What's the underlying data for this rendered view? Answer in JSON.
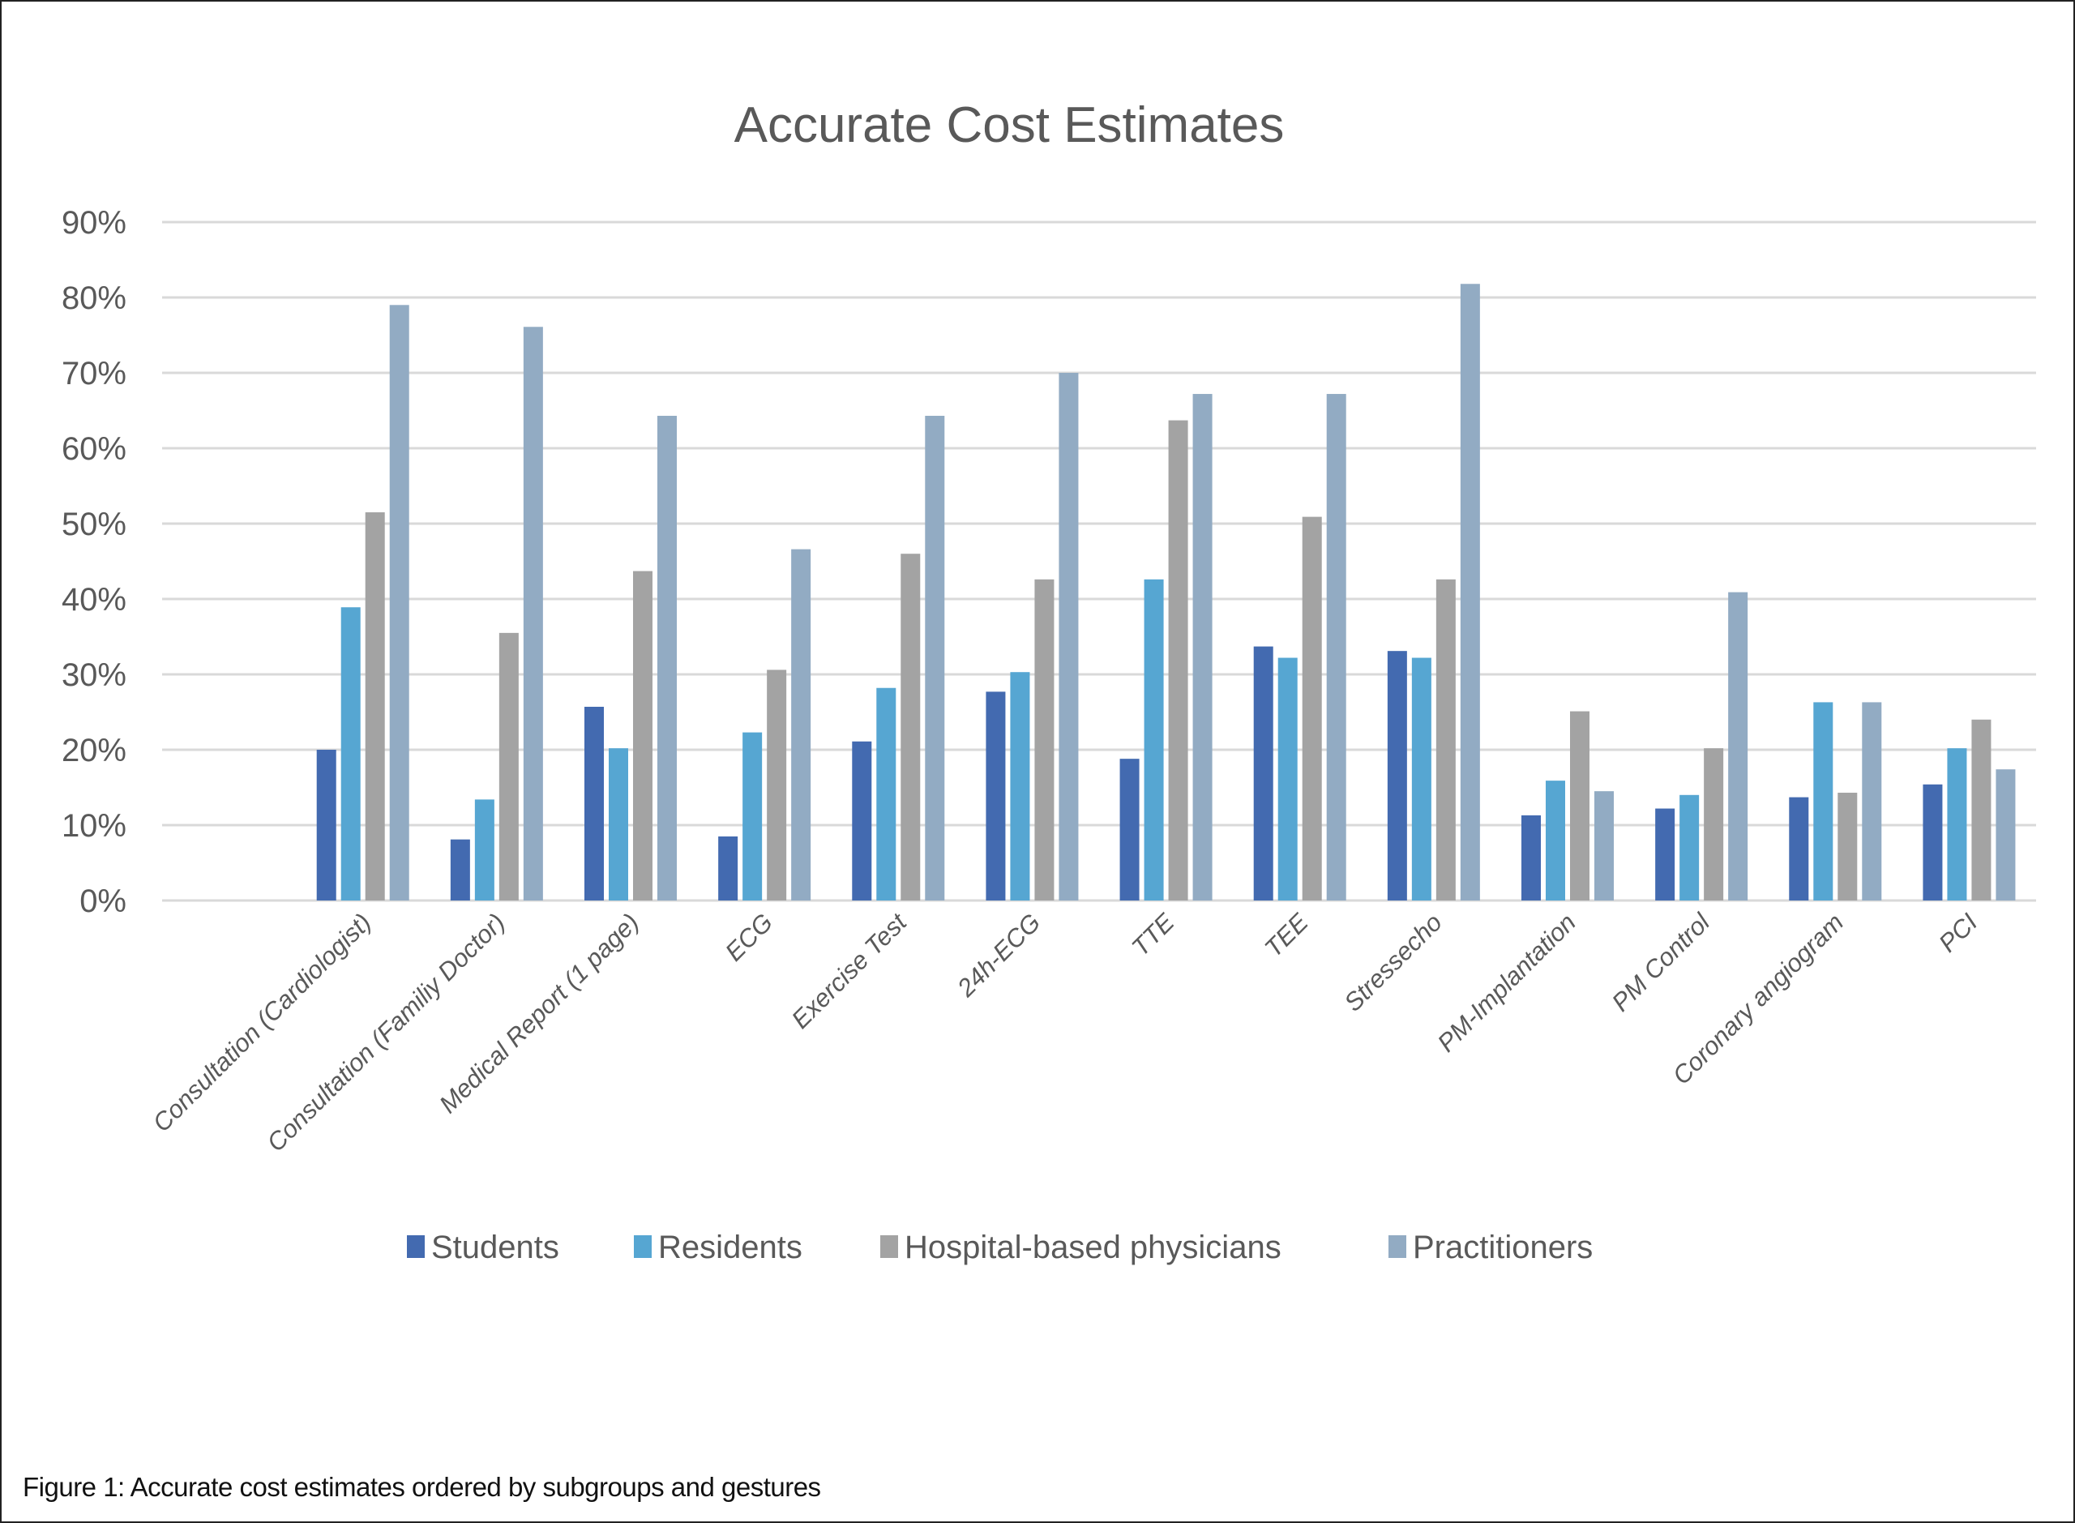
{
  "figure": {
    "caption": "Figure 1: Accurate cost estimates ordered by subgroups and gestures"
  },
  "chart_data": {
    "type": "bar",
    "title": "Accurate Cost Estimates",
    "xlabel": "",
    "ylabel": "",
    "ylim": [
      0,
      0.9
    ],
    "yticks": [
      0,
      0.1,
      0.2,
      0.3,
      0.4,
      0.5,
      0.6,
      0.7,
      0.8,
      0.9
    ],
    "ytick_labels": [
      "0%",
      "10%",
      "20%",
      "30%",
      "40%",
      "50%",
      "60%",
      "70%",
      "80%",
      "90%"
    ],
    "grid": true,
    "legend_position": "bottom",
    "categories": [
      "",
      "Consultation (Cardiologist)",
      "Consultation (Familiy Doctor)",
      "Medical Report (1 page)",
      "ECG",
      "Exercise Test",
      "24h-ECG",
      "TTE",
      "TEE",
      "Stressecho",
      "PM-Implantation",
      "PM Control",
      "Coronary angiogram",
      "PCI"
    ],
    "series": [
      {
        "name": "Students",
        "color": "#436AB0",
        "values": [
          null,
          0.2,
          0.081,
          0.257,
          0.085,
          0.211,
          0.277,
          0.188,
          0.337,
          0.331,
          0.113,
          0.122,
          0.137,
          0.154
        ]
      },
      {
        "name": "Residents",
        "color": "#56A6D2",
        "values": [
          null,
          0.389,
          0.134,
          0.202,
          0.223,
          0.282,
          0.303,
          0.426,
          0.322,
          0.322,
          0.159,
          0.14,
          0.263,
          0.202
        ]
      },
      {
        "name": "Hospital-based physicians",
        "color": "#A3A3A3",
        "values": [
          null,
          0.515,
          0.355,
          0.437,
          0.306,
          0.46,
          0.426,
          0.637,
          0.509,
          0.426,
          0.251,
          0.202,
          0.143,
          0.24
        ]
      },
      {
        "name": "Practitioners",
        "color": "#92ABC3",
        "values": [
          null,
          0.79,
          0.761,
          0.643,
          0.466,
          0.643,
          0.7,
          0.672,
          0.672,
          0.818,
          0.145,
          0.409,
          0.263,
          0.174
        ]
      }
    ]
  },
  "colors": {
    "gridline": "#D9D9D9",
    "axis_text": "#595959",
    "title_text": "#595959"
  }
}
